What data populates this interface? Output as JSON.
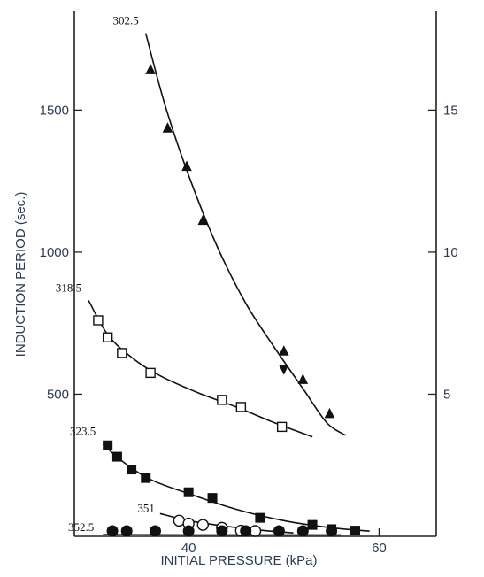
{
  "chart_data": {
    "type": "scatter",
    "title": "",
    "xlabel": "INITIAL PRESSURE (kPa)",
    "ylabel": "INDUCTION PERIOD (sec.)",
    "xlim": [
      28,
      66
    ],
    "ylim": [
      0,
      1850
    ],
    "x_ticks": [
      40,
      60
    ],
    "y_ticks_left": [
      500,
      1000,
      1500
    ],
    "y_ticks_right": [
      5,
      10,
      15
    ],
    "y2lim": [
      0,
      18.5
    ],
    "grid": false,
    "series": [
      {
        "name": "302.5",
        "marker": "triangle-filled",
        "points": [
          {
            "x": 36.0,
            "y": 1640
          },
          {
            "x": 37.8,
            "y": 1435
          },
          {
            "x": 39.8,
            "y": 1300
          },
          {
            "x": 41.5,
            "y": 1110
          },
          {
            "x": 50.0,
            "y": 650
          },
          {
            "x": 50.0,
            "y": 590,
            "marker": "triangle-down-filled"
          },
          {
            "x": 52.0,
            "y": 550
          },
          {
            "x": 54.8,
            "y": 430
          }
        ],
        "curve": [
          [
            35.5,
            1770
          ],
          [
            37.5,
            1520
          ],
          [
            40,
            1270
          ],
          [
            43,
            1020
          ],
          [
            46,
            820
          ],
          [
            49,
            665
          ],
          [
            52,
            520
          ],
          [
            54.5,
            400
          ],
          [
            56.5,
            355
          ]
        ]
      },
      {
        "name": "318.5",
        "marker": "square-open",
        "points": [
          {
            "x": 30.5,
            "y": 760
          },
          {
            "x": 31.5,
            "y": 700
          },
          {
            "x": 33.0,
            "y": 645
          },
          {
            "x": 36.0,
            "y": 575
          },
          {
            "x": 43.5,
            "y": 480
          },
          {
            "x": 45.5,
            "y": 455
          },
          {
            "x": 49.8,
            "y": 385
          }
        ],
        "curve": [
          [
            29.5,
            830
          ],
          [
            31.5,
            710
          ],
          [
            34,
            630
          ],
          [
            37,
            565
          ],
          [
            41,
            505
          ],
          [
            45,
            455
          ],
          [
            49,
            400
          ],
          [
            53,
            350
          ]
        ]
      },
      {
        "name": "323.5",
        "marker": "square-filled",
        "points": [
          {
            "x": 31.5,
            "y": 320
          },
          {
            "x": 32.5,
            "y": 280
          },
          {
            "x": 34.0,
            "y": 235
          },
          {
            "x": 35.5,
            "y": 205
          },
          {
            "x": 40.0,
            "y": 155
          },
          {
            "x": 42.5,
            "y": 135
          },
          {
            "x": 47.5,
            "y": 65
          },
          {
            "x": 53.0,
            "y": 40
          },
          {
            "x": 55.0,
            "y": 25
          },
          {
            "x": 57.5,
            "y": 20
          }
        ],
        "curve": [
          [
            31,
            325
          ],
          [
            33,
            265
          ],
          [
            36,
            200
          ],
          [
            40,
            150
          ],
          [
            45,
            95
          ],
          [
            50,
            55
          ],
          [
            55,
            30
          ],
          [
            59,
            18
          ]
        ]
      },
      {
        "name": "351",
        "marker": "circle-open",
        "points": [
          {
            "x": 39.0,
            "y": 55
          },
          {
            "x": 40.0,
            "y": 45
          },
          {
            "x": 41.5,
            "y": 40
          },
          {
            "x": 43.5,
            "y": 30
          },
          {
            "x": 45.5,
            "y": 20
          },
          {
            "x": 47.0,
            "y": 15
          }
        ],
        "curve": [
          [
            37,
            80
          ],
          [
            40,
            55
          ],
          [
            44,
            35
          ],
          [
            48,
            20
          ],
          [
            51,
            12
          ]
        ]
      },
      {
        "name": "352.5",
        "marker": "circle-filled",
        "points": [
          {
            "x": 32.0,
            "y": 5
          },
          {
            "x": 33.5,
            "y": 5
          },
          {
            "x": 36.5,
            "y": 5
          },
          {
            "x": 40.0,
            "y": 5
          },
          {
            "x": 43.5,
            "y": 5
          },
          {
            "x": 46.0,
            "y": 5
          },
          {
            "x": 49.5,
            "y": 5
          },
          {
            "x": 52.0,
            "y": 5
          },
          {
            "x": 55.0,
            "y": 5
          }
        ],
        "curve": [
          [
            31,
            6
          ],
          [
            40,
            5
          ],
          [
            50,
            5
          ],
          [
            56,
            5
          ]
        ]
      }
    ]
  }
}
